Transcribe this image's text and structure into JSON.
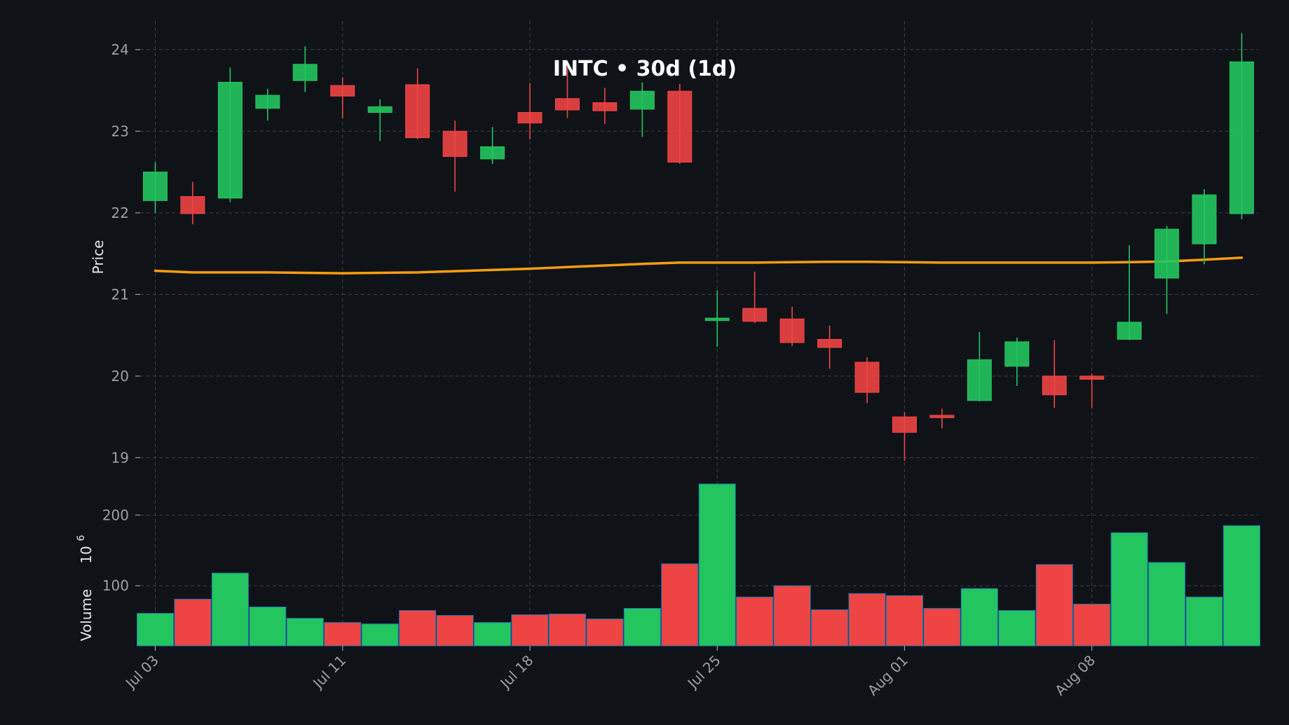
{
  "chart_data": {
    "type": "candlestick",
    "title": "INTC • 30d (1d)",
    "price_ylabel": "Price",
    "volume_ylabel": "Volume",
    "volume_multiplier": "10",
    "volume_exponent": "6",
    "price_ylim": [
      18.6,
      24.35
    ],
    "price_ticks": [
      "19",
      "20",
      "21",
      "22",
      "23",
      "24"
    ],
    "volume_ylim": [
      15,
      235
    ],
    "volume_ticks": [
      "100",
      "200"
    ],
    "x_ticks": [
      {
        "index": 0,
        "label": "Jul 03"
      },
      {
        "index": 5,
        "label": "Jul 11"
      },
      {
        "index": 10,
        "label": "Jul 18"
      },
      {
        "index": 15,
        "label": "Jul 25"
      },
      {
        "index": 20,
        "label": "Aug 01"
      },
      {
        "index": 25,
        "label": "Aug 08"
      }
    ],
    "grid": true,
    "colors": {
      "background": "#0f1318",
      "up": "#22c55e",
      "down": "#ef4444",
      "ma": "#f59e0b",
      "volume_edge": "#1f77b4"
    },
    "candles": [
      {
        "open": 22.15,
        "high": 22.62,
        "low": 22.0,
        "close": 22.5,
        "volume": 61
      },
      {
        "open": 22.2,
        "high": 22.38,
        "low": 21.86,
        "close": 21.99,
        "volume": 81
      },
      {
        "open": 22.18,
        "high": 23.78,
        "low": 22.13,
        "close": 23.6,
        "volume": 118
      },
      {
        "open": 23.28,
        "high": 23.52,
        "low": 23.13,
        "close": 23.44,
        "volume": 70
      },
      {
        "open": 23.62,
        "high": 24.04,
        "low": 23.48,
        "close": 23.82,
        "volume": 54
      },
      {
        "open": 23.56,
        "high": 23.66,
        "low": 23.16,
        "close": 23.43,
        "volume": 48
      },
      {
        "open": 23.23,
        "high": 23.39,
        "low": 22.88,
        "close": 23.3,
        "volume": 46
      },
      {
        "open": 23.57,
        "high": 23.77,
        "low": 22.9,
        "close": 22.92,
        "volume": 65
      },
      {
        "open": 23.0,
        "high": 23.13,
        "low": 22.26,
        "close": 22.69,
        "volume": 58
      },
      {
        "open": 22.66,
        "high": 23.05,
        "low": 22.6,
        "close": 22.81,
        "volume": 48
      },
      {
        "open": 23.23,
        "high": 23.59,
        "low": 22.9,
        "close": 23.1,
        "volume": 59
      },
      {
        "open": 23.4,
        "high": 23.78,
        "low": 23.16,
        "close": 23.26,
        "volume": 60
      },
      {
        "open": 23.35,
        "high": 23.53,
        "low": 23.09,
        "close": 23.25,
        "volume": 53
      },
      {
        "open": 23.27,
        "high": 23.6,
        "low": 22.93,
        "close": 23.49,
        "volume": 68
      },
      {
        "open": 23.49,
        "high": 23.58,
        "low": 22.6,
        "close": 22.62,
        "volume": 131
      },
      {
        "open": 20.68,
        "high": 21.05,
        "low": 20.36,
        "close": 20.71,
        "volume": 244
      },
      {
        "open": 20.83,
        "high": 21.28,
        "low": 20.65,
        "close": 20.67,
        "volume": 84
      },
      {
        "open": 20.7,
        "high": 20.85,
        "low": 20.37,
        "close": 20.41,
        "volume": 100
      },
      {
        "open": 20.45,
        "high": 20.62,
        "low": 20.09,
        "close": 20.35,
        "volume": 66
      },
      {
        "open": 20.17,
        "high": 20.23,
        "low": 19.67,
        "close": 19.8,
        "volume": 89
      },
      {
        "open": 19.5,
        "high": 19.56,
        "low": 18.96,
        "close": 19.31,
        "volume": 86
      },
      {
        "open": 19.52,
        "high": 19.6,
        "low": 19.36,
        "close": 19.49,
        "volume": 68
      },
      {
        "open": 19.7,
        "high": 20.54,
        "low": 19.69,
        "close": 20.2,
        "volume": 96
      },
      {
        "open": 20.12,
        "high": 20.47,
        "low": 19.88,
        "close": 20.42,
        "volume": 65
      },
      {
        "open": 20.0,
        "high": 20.44,
        "low": 19.61,
        "close": 19.77,
        "volume": 130
      },
      {
        "open": 20.0,
        "high": 20.03,
        "low": 19.61,
        "close": 19.96,
        "volume": 74
      },
      {
        "open": 20.45,
        "high": 21.6,
        "low": 20.44,
        "close": 20.66,
        "volume": 175
      },
      {
        "open": 21.2,
        "high": 21.84,
        "low": 20.76,
        "close": 21.8,
        "volume": 133
      },
      {
        "open": 21.62,
        "high": 22.29,
        "low": 21.37,
        "close": 22.22,
        "volume": 84
      },
      {
        "open": 21.99,
        "high": 24.2,
        "low": 21.92,
        "close": 23.85,
        "volume": 185
      }
    ],
    "moving_average": [
      21.29,
      21.27,
      21.27,
      21.27,
      21.265,
      21.26,
      21.265,
      21.27,
      21.285,
      21.3,
      21.315,
      21.335,
      21.355,
      21.375,
      21.39,
      21.39,
      21.39,
      21.395,
      21.4,
      21.4,
      21.395,
      21.39,
      21.39,
      21.39,
      21.39,
      21.39,
      21.395,
      21.405,
      21.425,
      21.45
    ]
  }
}
